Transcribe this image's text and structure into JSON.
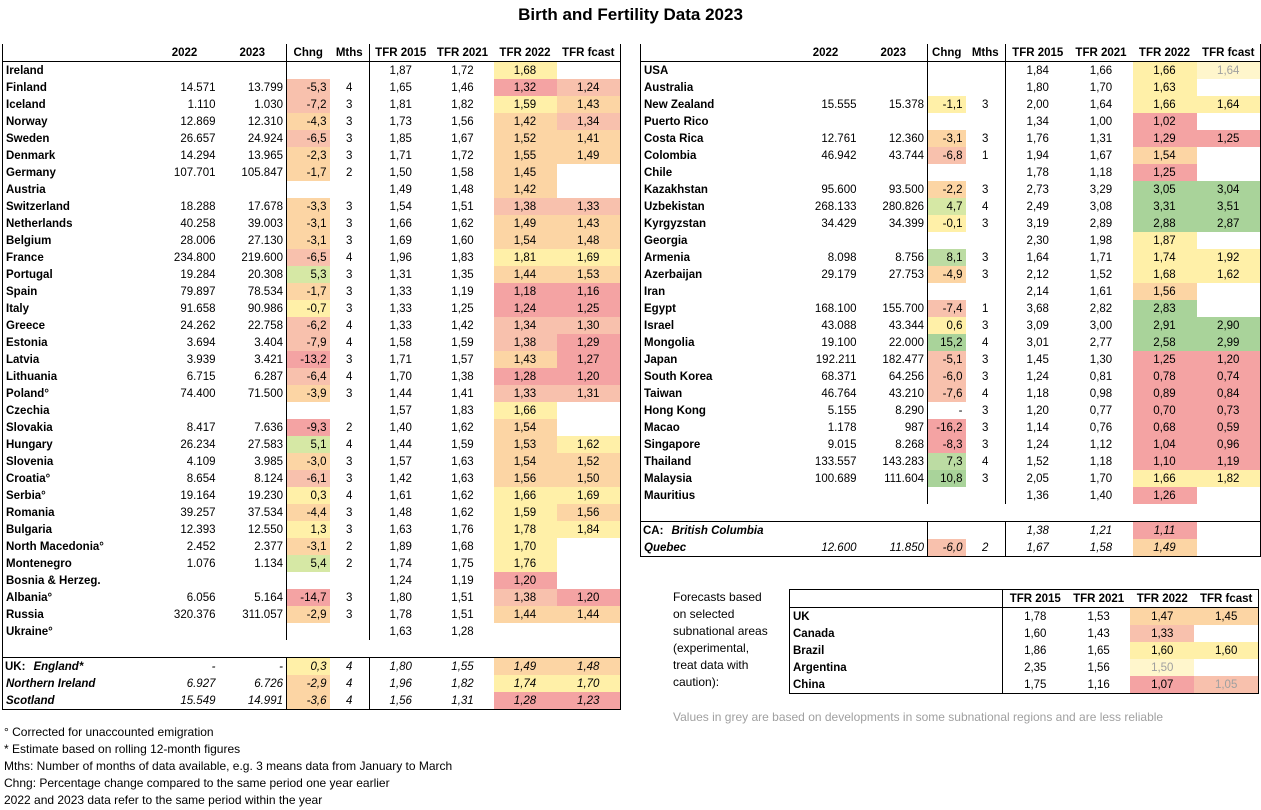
{
  "title": "Birth and Fertility Data 2023",
  "colors": {
    "red": "#f4a3a3",
    "lightred": "#f8c1ad",
    "orange": "#fcd5a4",
    "yellow": "#fff0a8",
    "paleyellow": "#fff6cc",
    "lightgreen": "#d6e8a5",
    "green": "#a9d39a",
    "midgreen": "#bcdca3"
  },
  "columns": [
    "",
    "2022",
    "2023",
    "Chng",
    "Mths",
    "TFR 2015",
    "TFR 2021",
    "TFR 2022",
    "TFR fcast"
  ],
  "left": [
    {
      "name": "Ireland",
      "y22": "",
      "y23": "",
      "chng": "",
      "m": "",
      "t15": "1,87",
      "t21": "1,72",
      "t22": "1,68",
      "tf": "",
      "cc": "",
      "c22": "yellow",
      "cf": ""
    },
    {
      "name": "Finland",
      "y22": "14.571",
      "y23": "13.799",
      "chng": "-5,3",
      "m": "4",
      "t15": "1,65",
      "t21": "1,46",
      "t22": "1,32",
      "tf": "1,24",
      "cc": "lightred",
      "c22": "red",
      "cf": "lightred"
    },
    {
      "name": "Iceland",
      "y22": "1.110",
      "y23": "1.030",
      "chng": "-7,2",
      "m": "3",
      "t15": "1,81",
      "t21": "1,82",
      "t22": "1,59",
      "tf": "1,43",
      "cc": "lightred",
      "c22": "yellow",
      "cf": "orange"
    },
    {
      "name": "Norway",
      "y22": "12.869",
      "y23": "12.310",
      "chng": "-4,3",
      "m": "3",
      "t15": "1,73",
      "t21": "1,56",
      "t22": "1,42",
      "tf": "1,34",
      "cc": "orange",
      "c22": "orange",
      "cf": "lightred"
    },
    {
      "name": "Sweden",
      "y22": "26.657",
      "y23": "24.924",
      "chng": "-6,5",
      "m": "3",
      "t15": "1,85",
      "t21": "1,67",
      "t22": "1,52",
      "tf": "1,41",
      "cc": "lightred",
      "c22": "orange",
      "cf": "orange"
    },
    {
      "name": "Denmark",
      "y22": "14.294",
      "y23": "13.965",
      "chng": "-2,3",
      "m": "3",
      "t15": "1,71",
      "t21": "1,72",
      "t22": "1,55",
      "tf": "1,49",
      "cc": "orange",
      "c22": "orange",
      "cf": "orange"
    },
    {
      "name": "Germany",
      "y22": "107.701",
      "y23": "105.847",
      "chng": "-1,7",
      "m": "2",
      "t15": "1,50",
      "t21": "1,58",
      "t22": "1,45",
      "tf": "",
      "cc": "orange",
      "c22": "orange",
      "cf": ""
    },
    {
      "name": "Austria",
      "y22": "",
      "y23": "",
      "chng": "",
      "m": "",
      "t15": "1,49",
      "t21": "1,48",
      "t22": "1,42",
      "tf": "",
      "cc": "",
      "c22": "orange",
      "cf": ""
    },
    {
      "name": "Switzerland",
      "y22": "18.288",
      "y23": "17.678",
      "chng": "-3,3",
      "m": "3",
      "t15": "1,54",
      "t21": "1,51",
      "t22": "1,38",
      "tf": "1,33",
      "cc": "orange",
      "c22": "lightred",
      "cf": "lightred"
    },
    {
      "name": "Netherlands",
      "y22": "40.258",
      "y23": "39.003",
      "chng": "-3,1",
      "m": "3",
      "t15": "1,66",
      "t21": "1,62",
      "t22": "1,49",
      "tf": "1,43",
      "cc": "orange",
      "c22": "orange",
      "cf": "orange"
    },
    {
      "name": "Belgium",
      "y22": "28.006",
      "y23": "27.130",
      "chng": "-3,1",
      "m": "3",
      "t15": "1,69",
      "t21": "1,60",
      "t22": "1,54",
      "tf": "1,48",
      "cc": "orange",
      "c22": "orange",
      "cf": "orange"
    },
    {
      "name": "France",
      "y22": "234.800",
      "y23": "219.600",
      "chng": "-6,5",
      "m": "4",
      "t15": "1,96",
      "t21": "1,83",
      "t22": "1,81",
      "tf": "1,69",
      "cc": "lightred",
      "c22": "yellow",
      "cf": "yellow"
    },
    {
      "name": "Portugal",
      "y22": "19.284",
      "y23": "20.308",
      "chng": "5,3",
      "m": "3",
      "t15": "1,31",
      "t21": "1,35",
      "t22": "1,44",
      "tf": "1,53",
      "cc": "lightgreen",
      "c22": "orange",
      "cf": "orange"
    },
    {
      "name": "Spain",
      "y22": "79.897",
      "y23": "78.534",
      "chng": "-1,7",
      "m": "3",
      "t15": "1,33",
      "t21": "1,19",
      "t22": "1,18",
      "tf": "1,16",
      "cc": "orange",
      "c22": "red",
      "cf": "red"
    },
    {
      "name": "Italy",
      "y22": "91.658",
      "y23": "90.986",
      "chng": "-0,7",
      "m": "3",
      "t15": "1,33",
      "t21": "1,25",
      "t22": "1,24",
      "tf": "1,25",
      "cc": "yellow",
      "c22": "red",
      "cf": "red"
    },
    {
      "name": "Greece",
      "y22": "24.262",
      "y23": "22.758",
      "chng": "-6,2",
      "m": "4",
      "t15": "1,33",
      "t21": "1,42",
      "t22": "1,34",
      "tf": "1,30",
      "cc": "lightred",
      "c22": "lightred",
      "cf": "lightred"
    },
    {
      "name": "Estonia",
      "y22": "3.694",
      "y23": "3.404",
      "chng": "-7,9",
      "m": "4",
      "t15": "1,58",
      "t21": "1,59",
      "t22": "1,38",
      "tf": "1,29",
      "cc": "lightred",
      "c22": "lightred",
      "cf": "red"
    },
    {
      "name": "Latvia",
      "y22": "3.939",
      "y23": "3.421",
      "chng": "-13,2",
      "m": "3",
      "t15": "1,71",
      "t21": "1,57",
      "t22": "1,43",
      "tf": "1,27",
      "cc": "red",
      "c22": "orange",
      "cf": "red"
    },
    {
      "name": "Lithuania",
      "y22": "6.715",
      "y23": "6.287",
      "chng": "-6,4",
      "m": "4",
      "t15": "1,70",
      "t21": "1,38",
      "t22": "1,28",
      "tf": "1,20",
      "cc": "lightred",
      "c22": "red",
      "cf": "red"
    },
    {
      "name": "Poland°",
      "y22": "74.400",
      "y23": "71.500",
      "chng": "-3,9",
      "m": "3",
      "t15": "1,44",
      "t21": "1,41",
      "t22": "1,33",
      "tf": "1,31",
      "cc": "orange",
      "c22": "lightred",
      "cf": "lightred"
    },
    {
      "name": "Czechia",
      "y22": "",
      "y23": "",
      "chng": "",
      "m": "",
      "t15": "1,57",
      "t21": "1,83",
      "t22": "1,66",
      "tf": "",
      "cc": "",
      "c22": "yellow",
      "cf": ""
    },
    {
      "name": "Slovakia",
      "y22": "8.417",
      "y23": "7.636",
      "chng": "-9,3",
      "m": "2",
      "t15": "1,40",
      "t21": "1,62",
      "t22": "1,54",
      "tf": "",
      "cc": "red",
      "c22": "orange",
      "cf": ""
    },
    {
      "name": "Hungary",
      "y22": "26.234",
      "y23": "27.583",
      "chng": "5,1",
      "m": "4",
      "t15": "1,44",
      "t21": "1,59",
      "t22": "1,53",
      "tf": "1,62",
      "cc": "lightgreen",
      "c22": "orange",
      "cf": "yellow"
    },
    {
      "name": "Slovenia",
      "y22": "4.109",
      "y23": "3.985",
      "chng": "-3,0",
      "m": "3",
      "t15": "1,57",
      "t21": "1,63",
      "t22": "1,54",
      "tf": "1,52",
      "cc": "orange",
      "c22": "orange",
      "cf": "orange"
    },
    {
      "name": "Croatia°",
      "y22": "8.654",
      "y23": "8.124",
      "chng": "-6,1",
      "m": "3",
      "t15": "1,42",
      "t21": "1,63",
      "t22": "1,56",
      "tf": "1,50",
      "cc": "lightred",
      "c22": "orange",
      "cf": "orange"
    },
    {
      "name": "Serbia°",
      "y22": "19.164",
      "y23": "19.230",
      "chng": "0,3",
      "m": "4",
      "t15": "1,61",
      "t21": "1,62",
      "t22": "1,66",
      "tf": "1,69",
      "cc": "yellow",
      "c22": "yellow",
      "cf": "yellow"
    },
    {
      "name": "Romania",
      "y22": "39.257",
      "y23": "37.534",
      "chng": "-4,4",
      "m": "3",
      "t15": "1,48",
      "t21": "1,62",
      "t22": "1,59",
      "tf": "1,56",
      "cc": "orange",
      "c22": "yellow",
      "cf": "orange"
    },
    {
      "name": "Bulgaria",
      "y22": "12.393",
      "y23": "12.550",
      "chng": "1,3",
      "m": "3",
      "t15": "1,63",
      "t21": "1,76",
      "t22": "1,78",
      "tf": "1,84",
      "cc": "yellow",
      "c22": "yellow",
      "cf": "yellow"
    },
    {
      "name": "North Macedonia°",
      "y22": "2.452",
      "y23": "2.377",
      "chng": "-3,1",
      "m": "2",
      "t15": "1,89",
      "t21": "1,68",
      "t22": "1,70",
      "tf": "",
      "cc": "orange",
      "c22": "yellow",
      "cf": ""
    },
    {
      "name": "Montenegro",
      "y22": "1.076",
      "y23": "1.134",
      "chng": "5,4",
      "m": "2",
      "t15": "1,74",
      "t21": "1,75",
      "t22": "1,76",
      "tf": "",
      "cc": "lightgreen",
      "c22": "yellow",
      "cf": ""
    },
    {
      "name": "Bosnia & Herzeg.",
      "y22": "",
      "y23": "",
      "chng": "",
      "m": "",
      "t15": "1,24",
      "t21": "1,19",
      "t22": "1,20",
      "tf": "",
      "cc": "",
      "c22": "red",
      "cf": ""
    },
    {
      "name": "Albania°",
      "y22": "6.056",
      "y23": "5.164",
      "chng": "-14,7",
      "m": "3",
      "t15": "1,80",
      "t21": "1,51",
      "t22": "1,38",
      "tf": "1,20",
      "cc": "red",
      "c22": "lightred",
      "cf": "red"
    },
    {
      "name": "Russia",
      "y22": "320.376",
      "y23": "311.057",
      "chng": "-2,9",
      "m": "3",
      "t15": "1,78",
      "t21": "1,51",
      "t22": "1,44",
      "tf": "1,44",
      "cc": "orange",
      "c22": "orange",
      "cf": "orange"
    },
    {
      "name": "Ukraine°",
      "y22": "",
      "y23": "",
      "chng": "",
      "m": "",
      "t15": "1,63",
      "t21": "1,28",
      "t22": "",
      "tf": "",
      "cc": "",
      "c22": "",
      "cf": ""
    }
  ],
  "uk_prefix": "UK:",
  "uk": [
    {
      "name": "England*",
      "y22": "-",
      "y23": "-",
      "chng": "0,3",
      "m": "4",
      "t15": "1,80",
      "t21": "1,55",
      "t22": "1,49",
      "tf": "1,48",
      "cc": "yellow",
      "c22": "orange",
      "cf": "orange"
    },
    {
      "name": "Northern Ireland",
      "y22": "6.927",
      "y23": "6.726",
      "chng": "-2,9",
      "m": "4",
      "t15": "1,96",
      "t21": "1,82",
      "t22": "1,74",
      "tf": "1,70",
      "cc": "orange",
      "c22": "yellow",
      "cf": "yellow"
    },
    {
      "name": "Scotland",
      "y22": "15.549",
      "y23": "14.991",
      "chng": "-3,6",
      "m": "4",
      "t15": "1,56",
      "t21": "1,31",
      "t22": "1,28",
      "tf": "1,23",
      "cc": "orange",
      "c22": "red",
      "cf": "red"
    }
  ],
  "right": [
    {
      "name": "USA",
      "y22": "",
      "y23": "",
      "chng": "",
      "m": "",
      "t15": "1,84",
      "t21": "1,66",
      "t22": "1,66",
      "tf": "1,64",
      "cc": "",
      "c22": "yellow",
      "cf": "paleyellow",
      "grey": true
    },
    {
      "name": "Australia",
      "y22": "",
      "y23": "",
      "chng": "",
      "m": "",
      "t15": "1,80",
      "t21": "1,70",
      "t22": "1,63",
      "tf": "",
      "cc": "",
      "c22": "yellow",
      "cf": ""
    },
    {
      "name": "New Zealand",
      "y22": "15.555",
      "y23": "15.378",
      "chng": "-1,1",
      "m": "3",
      "t15": "2,00",
      "t21": "1,64",
      "t22": "1,66",
      "tf": "1,64",
      "cc": "yellow",
      "c22": "yellow",
      "cf": "yellow"
    },
    {
      "name": "Puerto Rico",
      "y22": "",
      "y23": "",
      "chng": "",
      "m": "",
      "t15": "1,34",
      "t21": "1,00",
      "t22": "1,02",
      "tf": "",
      "cc": "",
      "c22": "red",
      "cf": ""
    },
    {
      "name": "Costa Rica",
      "y22": "12.761",
      "y23": "12.360",
      "chng": "-3,1",
      "m": "3",
      "t15": "1,76",
      "t21": "1,31",
      "t22": "1,29",
      "tf": "1,25",
      "cc": "orange",
      "c22": "red",
      "cf": "red"
    },
    {
      "name": "Colombia",
      "y22": "46.942",
      "y23": "43.744",
      "chng": "-6,8",
      "m": "1",
      "t15": "1,94",
      "t21": "1,67",
      "t22": "1,54",
      "tf": "",
      "cc": "lightred",
      "c22": "orange",
      "cf": ""
    },
    {
      "name": "Chile",
      "y22": "",
      "y23": "",
      "chng": "",
      "m": "",
      "t15": "1,78",
      "t21": "1,18",
      "t22": "1,25",
      "tf": "",
      "cc": "",
      "c22": "red",
      "cf": ""
    },
    {
      "name": "Kazakhstan",
      "y22": "95.600",
      "y23": "93.500",
      "chng": "-2,2",
      "m": "3",
      "t15": "2,73",
      "t21": "3,29",
      "t22": "3,05",
      "tf": "3,04",
      "cc": "orange",
      "c22": "green",
      "cf": "green"
    },
    {
      "name": "Uzbekistan",
      "y22": "268.133",
      "y23": "280.826",
      "chng": "4,7",
      "m": "4",
      "t15": "2,49",
      "t21": "3,08",
      "t22": "3,31",
      "tf": "3,51",
      "cc": "lightgreen",
      "c22": "green",
      "cf": "green"
    },
    {
      "name": "Kyrgyzstan",
      "y22": "34.429",
      "y23": "34.399",
      "chng": "-0,1",
      "m": "3",
      "t15": "3,19",
      "t21": "2,89",
      "t22": "2,88",
      "tf": "2,87",
      "cc": "yellow",
      "c22": "green",
      "cf": "green"
    },
    {
      "name": "Georgia",
      "y22": "",
      "y23": "",
      "chng": "",
      "m": "",
      "t15": "2,30",
      "t21": "1,98",
      "t22": "1,87",
      "tf": "",
      "cc": "",
      "c22": "yellow",
      "cf": ""
    },
    {
      "name": "Armenia",
      "y22": "8.098",
      "y23": "8.756",
      "chng": "8,1",
      "m": "3",
      "t15": "1,64",
      "t21": "1,71",
      "t22": "1,74",
      "tf": "1,92",
      "cc": "midgreen",
      "c22": "yellow",
      "cf": "yellow"
    },
    {
      "name": "Azerbaijan",
      "y22": "29.179",
      "y23": "27.753",
      "chng": "-4,9",
      "m": "3",
      "t15": "2,12",
      "t21": "1,52",
      "t22": "1,68",
      "tf": "1,62",
      "cc": "orange",
      "c22": "yellow",
      "cf": "yellow"
    },
    {
      "name": "Iran",
      "y22": "",
      "y23": "",
      "chng": "",
      "m": "",
      "t15": "2,14",
      "t21": "1,61",
      "t22": "1,56",
      "tf": "",
      "cc": "",
      "c22": "orange",
      "cf": ""
    },
    {
      "name": "Egypt",
      "y22": "168.100",
      "y23": "155.700",
      "chng": "-7,4",
      "m": "1",
      "t15": "3,68",
      "t21": "2,82",
      "t22": "2,83",
      "tf": "",
      "cc": "lightred",
      "c22": "green",
      "cf": ""
    },
    {
      "name": "Israel",
      "y22": "43.088",
      "y23": "43.344",
      "chng": "0,6",
      "m": "3",
      "t15": "3,09",
      "t21": "3,00",
      "t22": "2,91",
      "tf": "2,90",
      "cc": "yellow",
      "c22": "green",
      "cf": "green"
    },
    {
      "name": "Mongolia",
      "y22": "19.100",
      "y23": "22.000",
      "chng": "15,2",
      "m": "4",
      "t15": "3,01",
      "t21": "2,77",
      "t22": "2,58",
      "tf": "2,99",
      "cc": "green",
      "c22": "green",
      "cf": "green"
    },
    {
      "name": "Japan",
      "y22": "192.211",
      "y23": "182.477",
      "chng": "-5,1",
      "m": "3",
      "t15": "1,45",
      "t21": "1,30",
      "t22": "1,25",
      "tf": "1,20",
      "cc": "lightred",
      "c22": "red",
      "cf": "red"
    },
    {
      "name": "South Korea",
      "y22": "68.371",
      "y23": "64.256",
      "chng": "-6,0",
      "m": "3",
      "t15": "1,24",
      "t21": "0,81",
      "t22": "0,78",
      "tf": "0,74",
      "cc": "lightred",
      "c22": "red",
      "cf": "red"
    },
    {
      "name": "Taiwan",
      "y22": "46.764",
      "y23": "43.210",
      "chng": "-7,6",
      "m": "4",
      "t15": "1,18",
      "t21": "0,98",
      "t22": "0,89",
      "tf": "0,84",
      "cc": "lightred",
      "c22": "red",
      "cf": "red"
    },
    {
      "name": "Hong Kong",
      "y22": "5.155",
      "y23": "8.290",
      "chng": "-",
      "m": "3",
      "t15": "1,20",
      "t21": "0,77",
      "t22": "0,70",
      "tf": "0,73",
      "cc": "",
      "c22": "red",
      "cf": "red"
    },
    {
      "name": "Macao",
      "y22": "1.178",
      "y23": "987",
      "chng": "-16,2",
      "m": "3",
      "t15": "1,14",
      "t21": "0,76",
      "t22": "0,68",
      "tf": "0,59",
      "cc": "red",
      "c22": "red",
      "cf": "red"
    },
    {
      "name": "Singapore",
      "y22": "9.015",
      "y23": "8.268",
      "chng": "-8,3",
      "m": "3",
      "t15": "1,24",
      "t21": "1,12",
      "t22": "1,04",
      "tf": "0,96",
      "cc": "red",
      "c22": "red",
      "cf": "red"
    },
    {
      "name": "Thailand",
      "y22": "133.557",
      "y23": "143.283",
      "chng": "7,3",
      "m": "4",
      "t15": "1,52",
      "t21": "1,18",
      "t22": "1,10",
      "tf": "1,19",
      "cc": "midgreen",
      "c22": "red",
      "cf": "red"
    },
    {
      "name": "Malaysia",
      "y22": "100.689",
      "y23": "111.604",
      "chng": "10,8",
      "m": "3",
      "t15": "2,05",
      "t21": "1,70",
      "t22": "1,66",
      "tf": "1,82",
      "cc": "green",
      "c22": "yellow",
      "cf": "yellow"
    },
    {
      "name": "Mauritius",
      "y22": "",
      "y23": "",
      "chng": "",
      "m": "",
      "t15": "1,36",
      "t21": "1,40",
      "t22": "1,26",
      "tf": "",
      "cc": "",
      "c22": "red",
      "cf": ""
    }
  ],
  "ca_prefix": "CA:",
  "ca": [
    {
      "name": "British Columbia",
      "y22": "",
      "y23": "",
      "chng": "",
      "m": "",
      "t15": "1,38",
      "t21": "1,21",
      "t22": "1,11",
      "tf": "",
      "cc": "",
      "c22": "red",
      "cf": ""
    },
    {
      "name": "Quebec",
      "y22": "12.600",
      "y23": "11.850",
      "chng": "-6,0",
      "m": "2",
      "t15": "1,67",
      "t21": "1,58",
      "t22": "1,49",
      "tf": "",
      "cc": "lightred",
      "c22": "orange",
      "cf": ""
    }
  ],
  "forecast_label": [
    "Forecasts based",
    "on selected",
    "subnational areas",
    "(experimental,",
    "treat data with",
    "caution):"
  ],
  "forecast_columns": [
    "",
    "TFR 2015",
    "TFR 2021",
    "TFR 2022",
    "TFR fcast"
  ],
  "forecast": [
    {
      "name": "UK",
      "t15": "1,78",
      "t21": "1,53",
      "t22": "1,47",
      "tf": "1,45",
      "c22": "orange",
      "cf": "orange"
    },
    {
      "name": "Canada",
      "t15": "1,60",
      "t21": "1,43",
      "t22": "1,33",
      "tf": "",
      "c22": "lightred",
      "cf": ""
    },
    {
      "name": "Brazil",
      "t15": "1,86",
      "t21": "1,65",
      "t22": "1,60",
      "tf": "1,60",
      "c22": "yellow",
      "cf": "yellow"
    },
    {
      "name": "Argentina",
      "t15": "2,35",
      "t21": "1,56",
      "t22": "1,50",
      "tf": "",
      "c22": "paleyellow",
      "cf": "",
      "grey22": true
    },
    {
      "name": "China",
      "t15": "1,75",
      "t21": "1,16",
      "t22": "1,07",
      "tf": "1,05",
      "c22": "red",
      "cf": "lightred",
      "greyf": true
    }
  ],
  "grey_note": "Values in grey are based on developments in some subnational regions and are less reliable",
  "notes": [
    "° Corrected for unaccounted emigration",
    "* Estimate based on rolling 12-month figures",
    "Mths: Number of months of data available, e.g. 3 means data from January to March",
    "Chng: Percentage change compared to the same period one year earlier",
    "2022 and 2023 data refer to the same period within the year"
  ]
}
